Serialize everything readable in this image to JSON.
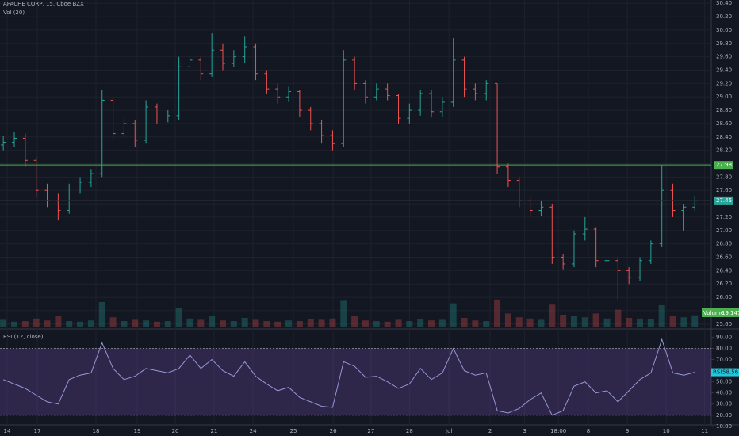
{
  "chart_data": [
    {
      "type": "candlestick",
      "title": "APACHE CORP, 15, Cboe BZX",
      "subtitle": "Vol (20)",
      "up_color": "#26a69a",
      "down_color": "#ef5350",
      "open": [
        28.28,
        28.32,
        28.38,
        28.05,
        27.6,
        27.45,
        27.3,
        27.62,
        27.72,
        27.85,
        28.95,
        28.45,
        28.6,
        28.35,
        28.85,
        28.7,
        28.72,
        29.45,
        29.55,
        29.35,
        29.7,
        29.5,
        29.6,
        29.75,
        29.35,
        29.12,
        29.0,
        29.08,
        28.8,
        28.6,
        28.42,
        28.3,
        29.55,
        29.2,
        29.0,
        29.12,
        29.02,
        28.68,
        28.8,
        29.05,
        28.78,
        28.92,
        29.55,
        29.12,
        29.05,
        29.2,
        27.95,
        27.75,
        27.45,
        27.3,
        27.35,
        26.6,
        26.5,
        26.95,
        27.02,
        26.55,
        26.55,
        26.4,
        26.3,
        26.55,
        26.8,
        27.6,
        27.3,
        27.35
      ],
      "high": [
        28.42,
        28.48,
        28.45,
        28.1,
        27.7,
        27.55,
        27.7,
        27.8,
        27.92,
        29.1,
        29.0,
        28.7,
        28.65,
        28.95,
        28.9,
        28.8,
        29.6,
        29.65,
        29.6,
        29.95,
        29.8,
        29.7,
        29.9,
        29.8,
        29.4,
        29.2,
        29.15,
        29.1,
        28.85,
        28.65,
        28.5,
        29.7,
        29.6,
        29.25,
        29.2,
        29.2,
        29.05,
        28.9,
        29.1,
        29.1,
        29.0,
        29.88,
        29.6,
        29.2,
        29.25,
        29.2,
        28.0,
        27.8,
        27.5,
        27.45,
        27.4,
        26.65,
        27.0,
        27.2,
        27.05,
        26.65,
        26.6,
        26.45,
        26.6,
        26.85,
        27.98,
        27.7,
        27.4,
        27.52
      ],
      "low": [
        28.2,
        28.25,
        27.95,
        27.5,
        27.35,
        27.15,
        27.25,
        27.55,
        27.65,
        27.8,
        28.35,
        28.4,
        28.25,
        28.3,
        28.6,
        28.62,
        28.65,
        29.35,
        29.25,
        29.3,
        29.4,
        29.45,
        29.5,
        29.25,
        29.05,
        28.9,
        28.92,
        28.7,
        28.5,
        28.3,
        28.2,
        28.25,
        29.1,
        28.9,
        28.95,
        28.95,
        28.6,
        28.6,
        28.72,
        28.7,
        28.7,
        28.85,
        29.0,
        28.95,
        28.95,
        27.85,
        27.65,
        27.35,
        27.2,
        27.22,
        26.5,
        26.42,
        26.45,
        26.85,
        26.45,
        26.45,
        25.97,
        26.2,
        26.25,
        26.5,
        26.75,
        27.2,
        27.0,
        27.3
      ],
      "close": [
        28.32,
        28.38,
        28.05,
        27.6,
        27.45,
        27.3,
        27.62,
        27.72,
        27.85,
        28.95,
        28.45,
        28.6,
        28.35,
        28.85,
        28.7,
        28.72,
        29.45,
        29.55,
        29.35,
        29.7,
        29.5,
        29.6,
        29.75,
        29.35,
        29.12,
        29.0,
        29.08,
        28.8,
        28.6,
        28.42,
        28.3,
        29.55,
        29.2,
        29.0,
        29.12,
        29.02,
        28.68,
        28.8,
        29.05,
        28.78,
        28.92,
        29.55,
        29.12,
        29.05,
        29.2,
        27.95,
        27.75,
        27.45,
        27.3,
        27.35,
        26.6,
        26.5,
        26.95,
        27.02,
        26.55,
        26.55,
        26.4,
        26.3,
        26.55,
        26.8,
        27.6,
        27.3,
        27.35,
        27.45
      ],
      "xlim": [
        -0.3,
        64.5
      ],
      "ylim": [
        25.55,
        30.45
      ],
      "yticks": [
        {
          "value": 30.4,
          "label": "30.40"
        },
        {
          "value": 30.2,
          "label": "30.20"
        },
        {
          "value": 30.0,
          "label": "30.00"
        },
        {
          "value": 29.8,
          "label": "29.80"
        },
        {
          "value": 29.6,
          "label": "29.60"
        },
        {
          "value": 29.4,
          "label": "29.40"
        },
        {
          "value": 29.2,
          "label": "29.20"
        },
        {
          "value": 29.0,
          "label": "29.00"
        },
        {
          "value": 28.8,
          "label": "28.80"
        },
        {
          "value": 28.6,
          "label": "28.60"
        },
        {
          "value": 28.4,
          "label": "28.40"
        },
        {
          "value": 28.2,
          "label": "28.20"
        },
        {
          "value": 28.0,
          "label": "28.00"
        },
        {
          "value": 27.8,
          "label": "27.80"
        },
        {
          "value": 27.6,
          "label": "27.60"
        },
        {
          "value": 27.4,
          "label": "27.40"
        },
        {
          "value": 27.2,
          "label": "27.20"
        },
        {
          "value": 27.0,
          "label": "27.00"
        },
        {
          "value": 26.8,
          "label": "26.80"
        },
        {
          "value": 26.6,
          "label": "26.60"
        },
        {
          "value": 26.4,
          "label": "26.40"
        },
        {
          "value": 26.2,
          "label": "26.20"
        },
        {
          "value": 26.0,
          "label": "26.00"
        },
        {
          "value": 25.8,
          "label": "25.80"
        },
        {
          "value": 25.6,
          "label": "25.60"
        }
      ],
      "levels": [
        {
          "value": 27.98,
          "label": "27.98",
          "color": "#4caf50"
        }
      ],
      "last_price": {
        "value": 27.45,
        "label": "27.45",
        "color": "#26a69a"
      },
      "grid": true
    },
    {
      "type": "bar",
      "name": "Volume",
      "color": "#4caf50",
      "values": [
        12,
        9,
        10,
        14,
        11,
        18,
        10,
        9,
        11,
        40,
        16,
        10,
        12,
        11,
        9,
        10,
        30,
        14,
        12,
        18,
        11,
        10,
        15,
        12,
        10,
        9,
        11,
        10,
        13,
        12,
        14,
        42,
        18,
        11,
        10,
        9,
        12,
        10,
        13,
        11,
        12,
        38,
        15,
        11,
        10,
        44,
        22,
        16,
        14,
        12,
        36,
        20,
        18,
        16,
        22,
        14,
        28,
        15,
        14,
        13,
        35,
        18,
        16,
        19.147
      ],
      "value_label": "19.147K",
      "xlim": [
        -0.3,
        64.5
      ],
      "ylim": [
        0,
        60
      ]
    },
    {
      "type": "line",
      "title": "RSI (12, close)",
      "name": "RSI",
      "color": "#7e57c2",
      "band": [
        20,
        80
      ],
      "values": [
        52,
        48,
        44,
        38,
        32,
        30,
        52,
        56,
        58,
        85,
        62,
        52,
        55,
        62,
        60,
        58,
        62,
        74,
        62,
        70,
        60,
        55,
        68,
        55,
        48,
        42,
        45,
        36,
        32,
        28,
        27,
        68,
        64,
        54,
        55,
        50,
        44,
        48,
        62,
        52,
        58,
        80,
        60,
        56,
        58,
        24,
        22,
        26,
        34,
        40,
        20,
        24,
        46,
        50,
        40,
        42,
        32,
        42,
        52,
        58,
        88,
        58,
        56,
        58.56
      ],
      "value_label": "58.56",
      "xlim": [
        -0.3,
        64.5
      ],
      "ylim": [
        12,
        96
      ],
      "yticks": [
        {
          "value": 90,
          "label": "90.00"
        },
        {
          "value": 80,
          "label": "80.00"
        },
        {
          "value": 70,
          "label": "70.00"
        },
        {
          "value": 60,
          "label": "60.00"
        },
        {
          "value": 50,
          "label": "50.00"
        },
        {
          "value": 40,
          "label": "40.00"
        },
        {
          "value": 30,
          "label": "30.00"
        },
        {
          "value": 20,
          "label": "20.00"
        },
        {
          "value": 10,
          "label": "10.00"
        }
      ],
      "xticks": [
        {
          "value": 0.35,
          "label": "14"
        },
        {
          "value": 3.1,
          "label": "17"
        },
        {
          "value": 8.44,
          "label": "18"
        },
        {
          "value": 12.2,
          "label": "19"
        },
        {
          "value": 15.67,
          "label": "20"
        },
        {
          "value": 19.2,
          "label": "21"
        },
        {
          "value": 22.75,
          "label": "24"
        },
        {
          "value": 26.43,
          "label": "25"
        },
        {
          "value": 30.05,
          "label": "26"
        },
        {
          "value": 33.5,
          "label": "27"
        },
        {
          "value": 37.0,
          "label": "28"
        },
        {
          "value": 40.6,
          "label": "Jul"
        },
        {
          "value": 44.35,
          "label": "2"
        },
        {
          "value": 47.5,
          "label": "3"
        },
        {
          "value": 50.57,
          "label": "18:00"
        },
        {
          "value": 53.3,
          "label": "8"
        },
        {
          "value": 56.85,
          "label": "9"
        },
        {
          "value": 60.4,
          "label": "10"
        },
        {
          "value": 63.9,
          "label": "11"
        }
      ]
    }
  ]
}
